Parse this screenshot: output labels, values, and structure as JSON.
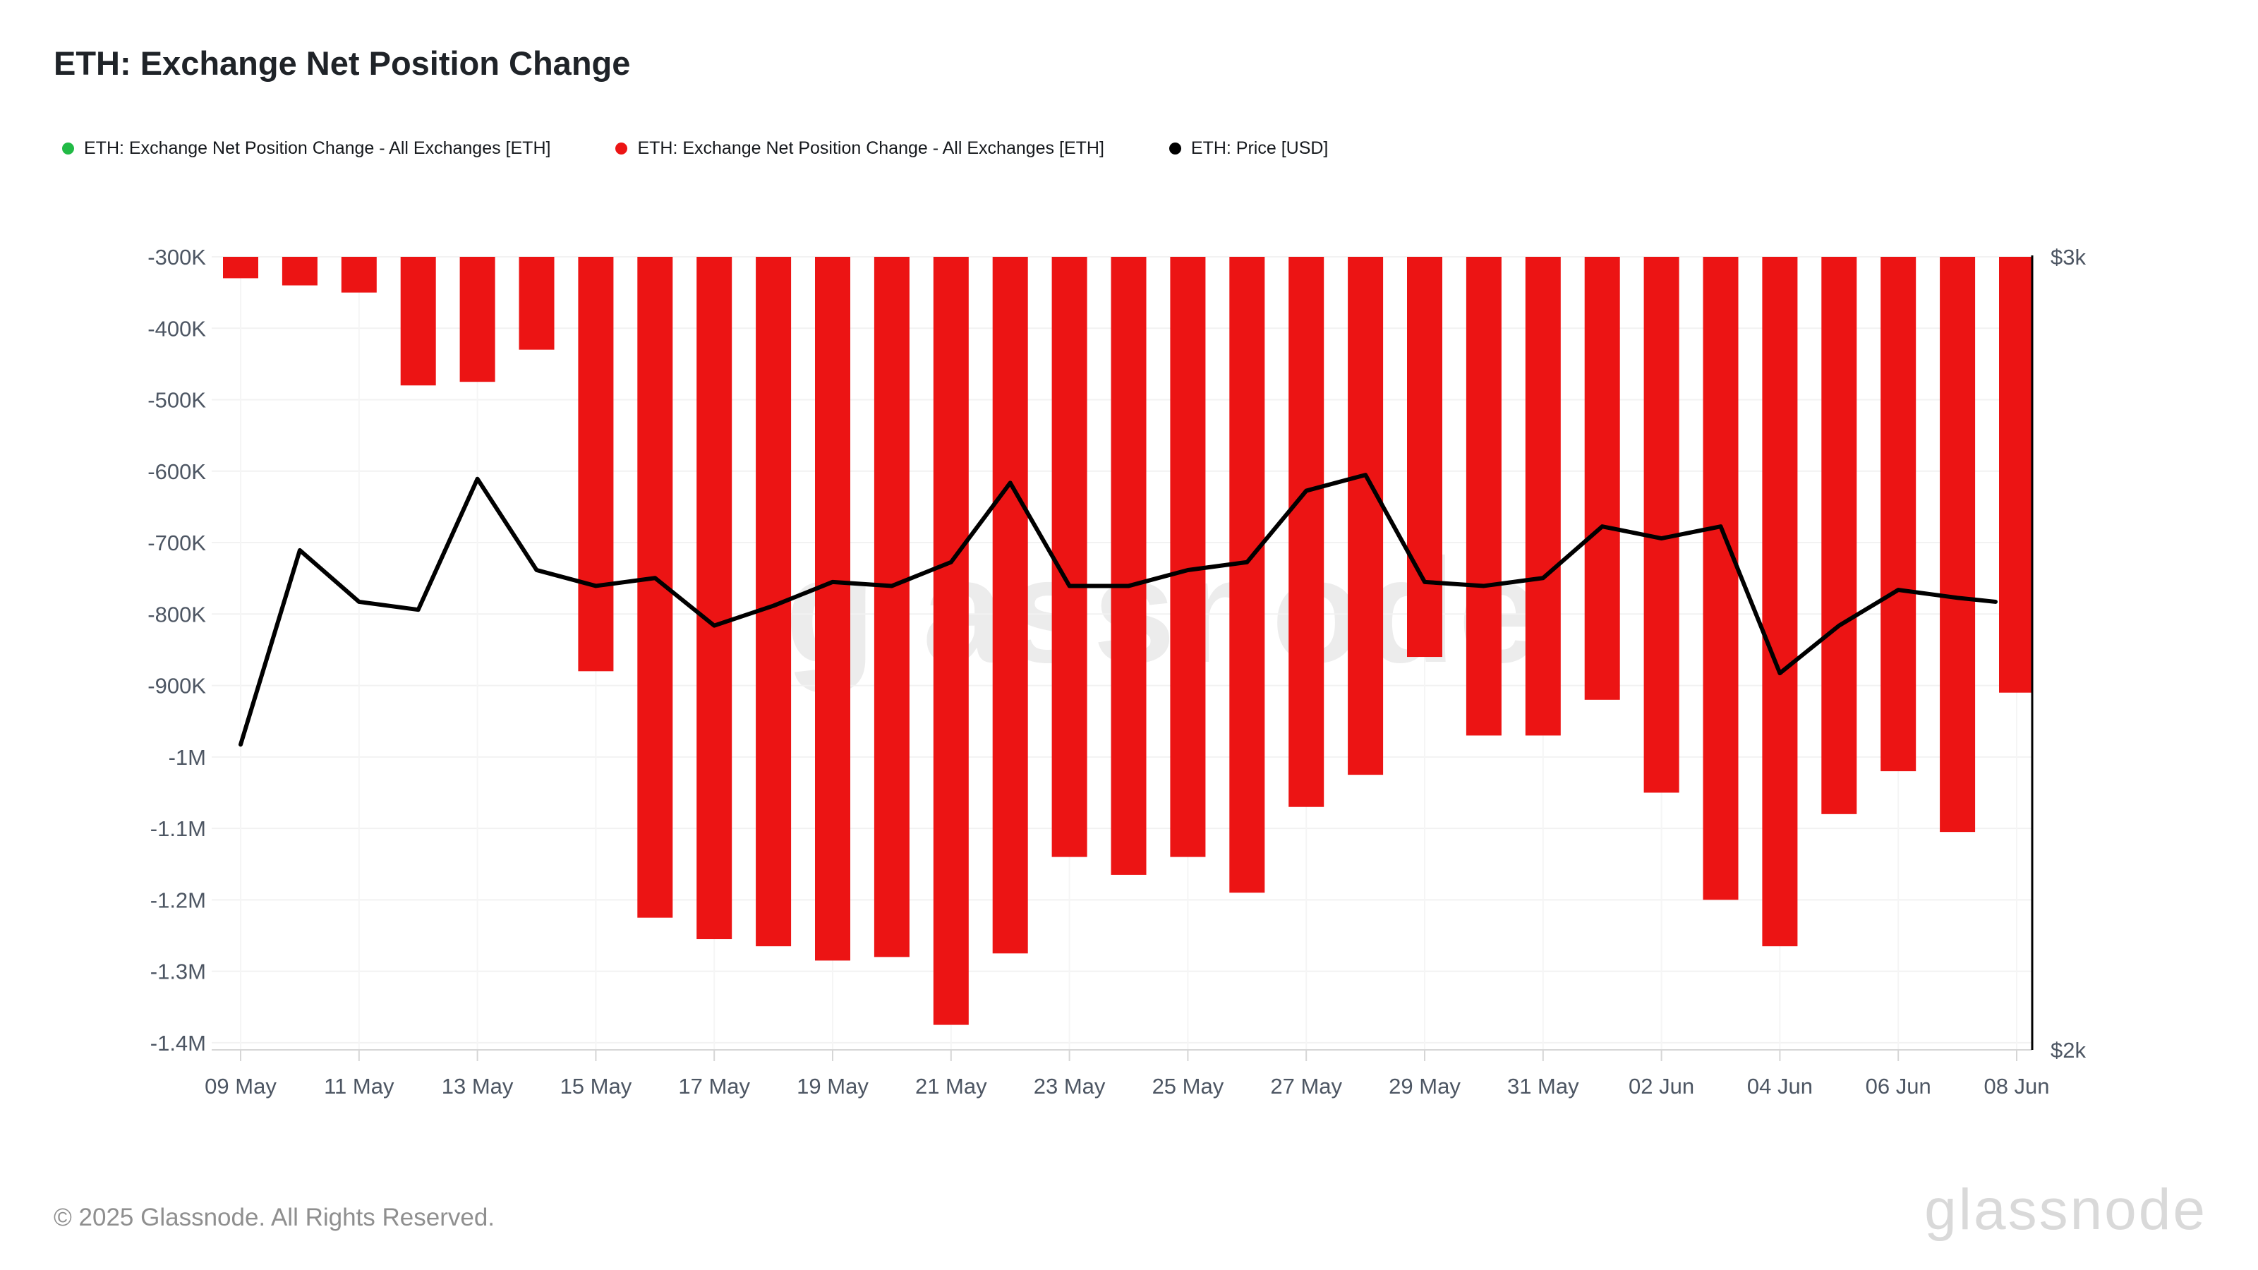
{
  "header": {
    "title": "ETH: Exchange Net Position Change"
  },
  "legend": [
    {
      "label": "ETH: Exchange Net Position Change - All Exchanges [ETH]",
      "color": "#21ba45"
    },
    {
      "label": "ETH: Exchange Net Position Change - All Exchanges [ETH]",
      "color": "#ec1414"
    },
    {
      "label": "ETH: Price [USD]",
      "color": "#000000"
    }
  ],
  "watermark": "glassnode",
  "footer": {
    "copyright": "© 2025 Glassnode. All Rights Reserved.",
    "logo": "glassnode"
  },
  "colors": {
    "bar": "#ec1414",
    "price_line": "#000000",
    "grid": "#f2f2f2",
    "axis_line": "#d6d6d6",
    "axis_text": "#4d5663",
    "watermark": "#ececec",
    "right_axis_line": "#000000"
  },
  "chart_data": {
    "type": "bar",
    "title": "ETH: Exchange Net Position Change",
    "categories": [
      "09 May",
      "10 May",
      "11 May",
      "12 May",
      "13 May",
      "14 May",
      "15 May",
      "16 May",
      "17 May",
      "18 May",
      "19 May",
      "20 May",
      "21 May",
      "22 May",
      "23 May",
      "24 May",
      "25 May",
      "26 May",
      "27 May",
      "28 May",
      "29 May",
      "30 May",
      "31 May",
      "01 Jun",
      "02 Jun",
      "03 Jun",
      "04 Jun",
      "05 Jun",
      "06 Jun",
      "07 Jun",
      "08 Jun"
    ],
    "series": [
      {
        "name": "ETH: Exchange Net Position Change - All Exchanges [ETH]",
        "type": "bar",
        "unit": "ETH",
        "values": [
          -330000,
          -340000,
          -350000,
          -480000,
          -475000,
          -430000,
          -880000,
          -1225000,
          -1255000,
          -1265000,
          -1285000,
          -1280000,
          -1375000,
          -1275000,
          -1140000,
          -1165000,
          -1140000,
          -1190000,
          -1070000,
          -1025000,
          -860000,
          -970000,
          -970000,
          -920000,
          -1050000,
          -1200000,
          -1265000,
          -1080000,
          -1020000,
          -1105000,
          -910000
        ]
      },
      {
        "name": "ETH: Price [USD]",
        "type": "line",
        "unit": "USD",
        "values": [
          2385,
          2630,
          2565,
          2555,
          2720,
          2605,
          2585,
          2595,
          2535,
          2560,
          2590,
          2585,
          2615,
          2715,
          2585,
          2585,
          2605,
          2615,
          2705,
          2725,
          2590,
          2585,
          2595,
          2660,
          2645,
          2660,
          2475,
          2535,
          2580,
          2570,
          2565
        ]
      }
    ],
    "left_axis": {
      "tick_labels": [
        "-300K",
        "-400K",
        "-500K",
        "-600K",
        "-700K",
        "-800K",
        "-900K",
        "-1M",
        "-1.1M",
        "-1.2M",
        "-1.3M",
        "-1.4M"
      ],
      "tick_values": [
        -300000,
        -400000,
        -500000,
        -600000,
        -700000,
        -800000,
        -900000,
        -1000000,
        -1100000,
        -1200000,
        -1300000,
        -1400000
      ],
      "range_top": -300000,
      "range_bottom": -1410000,
      "grid": true
    },
    "right_axis": {
      "tick_labels": [
        "$3k",
        "$2k"
      ],
      "tick_values": [
        3000,
        2000
      ],
      "range_top": 3000,
      "range_bottom": 2000
    },
    "x_axis": {
      "tick_labels": [
        "09 May",
        "11 May",
        "13 May",
        "15 May",
        "17 May",
        "19 May",
        "21 May",
        "23 May",
        "25 May",
        "27 May",
        "29 May",
        "31 May",
        "02 Jun",
        "04 Jun",
        "06 Jun",
        "08 Jun"
      ],
      "tick_every_n_days": 2
    },
    "legend_position": "top-left"
  }
}
